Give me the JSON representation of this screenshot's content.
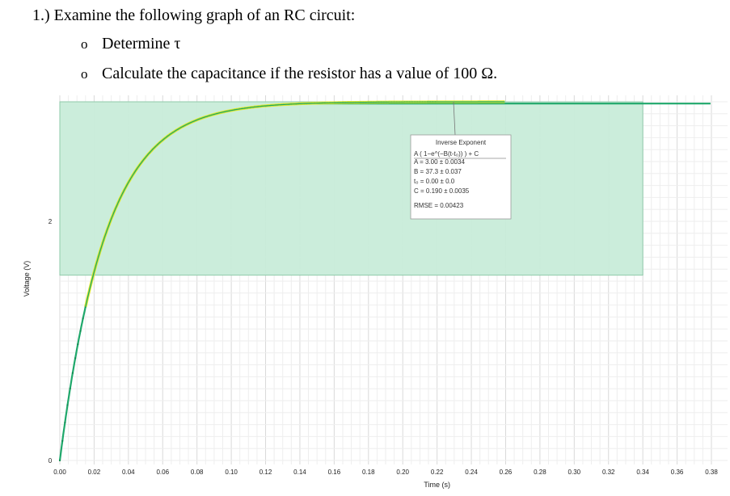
{
  "question": {
    "title": "1.) Examine the following graph of an RC circuit:",
    "bullet_mark": "o",
    "items": [
      "Determine τ",
      "Calculate the capacitance if the resistor has a value of 100 Ω."
    ]
  },
  "chart_data": {
    "type": "scatter",
    "xlabel": "Time (s)",
    "ylabel": "Voltage (V)",
    "xlim": [
      0,
      0.38
    ],
    "ylim": [
      0,
      3.0
    ],
    "x_ticks": [
      "0.00",
      "0.02",
      "0.04",
      "0.06",
      "0.08",
      "0.10",
      "0.12",
      "0.14",
      "0.16",
      "0.18",
      "0.20",
      "0.22",
      "0.24",
      "0.26",
      "0.28",
      "0.30",
      "0.32",
      "0.34",
      "0.36",
      "0.38"
    ],
    "y_ticks": [
      "0",
      "2"
    ],
    "grid": true,
    "selection_region": {
      "x": [
        0.015,
        0.34
      ],
      "y": [
        1.55,
        3.0
      ]
    },
    "fit": {
      "name": "Inverse Exponent",
      "formula": "A ( 1−e^(−B(t-t₀)) ) + C",
      "A": 3.0,
      "A_unc": 0.0034,
      "B": 37.3,
      "B_unc": 0.037,
      "t0": 0.0,
      "t0_unc": 0.0,
      "C": 0.19,
      "C_unc": 0.0035,
      "RMSE": 0.00423
    },
    "fit_box_lines": [
      "Inverse Exponent",
      "A ( 1−e^(−B(t-t₀)) ) + C",
      "A = 3.00   ± 0.0034",
      "B = 37.3   ± 0.037",
      "t₀ = 0.00   ± 0.0",
      "C = 0.190 ± 0.0035",
      "RMSE = 0.00423"
    ],
    "colors": {
      "data": "#1fa86b",
      "fit": "#e6ea1a",
      "region": "#c8ecd9",
      "region_border": "#8fcaaa",
      "grid": "#e2e2e2"
    }
  }
}
